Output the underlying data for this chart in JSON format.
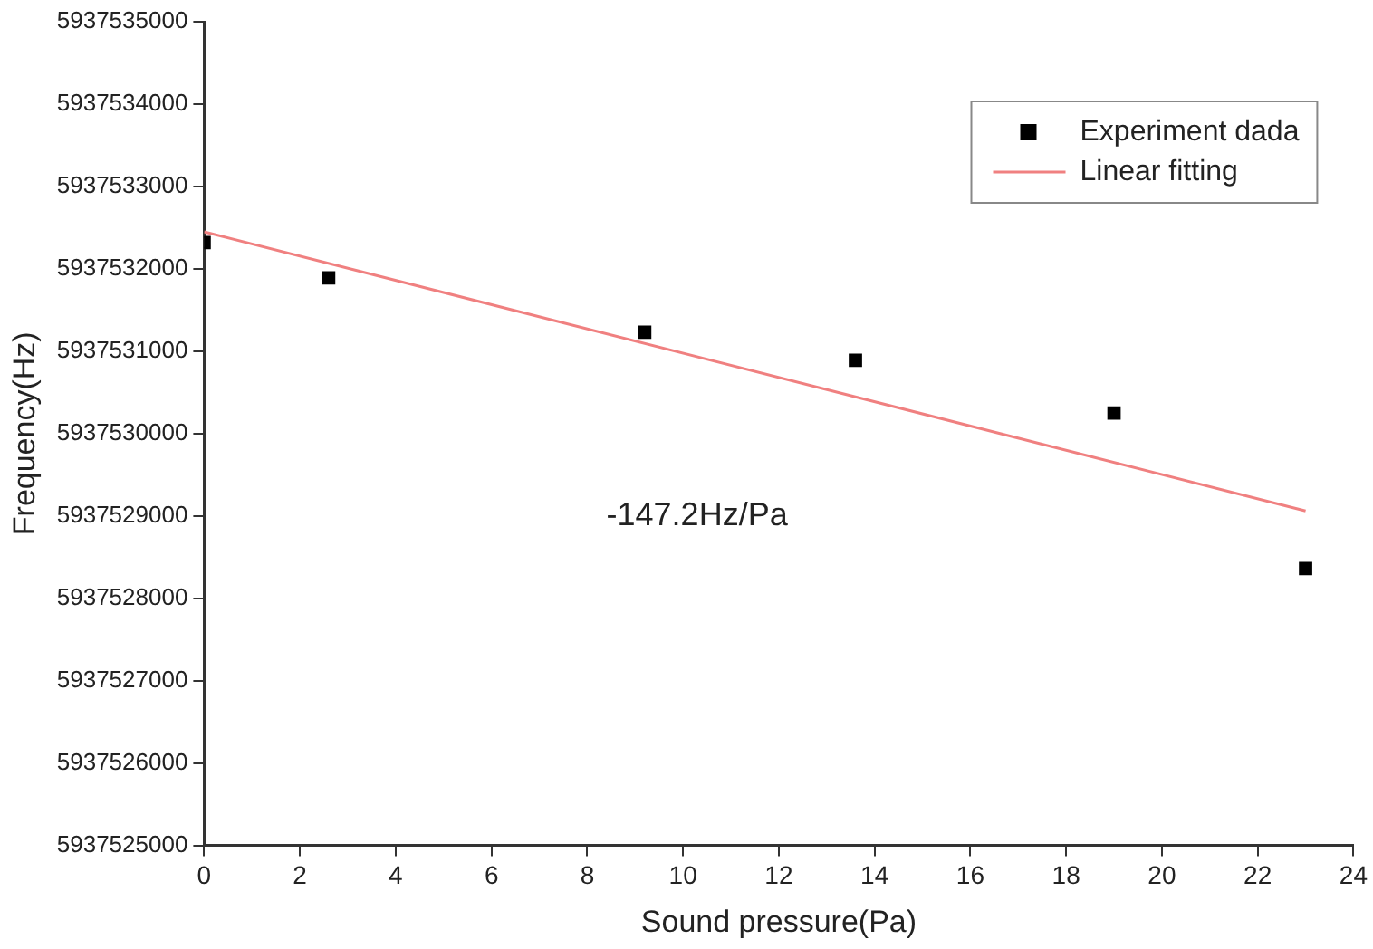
{
  "chart_data": {
    "type": "scatter",
    "xlabel": "Sound pressure(Pa)",
    "ylabel": "Frequency(Hz)",
    "series": [
      {
        "name": "Experiment dada",
        "color": "#000000",
        "marker": "square",
        "x": [
          0,
          2.6,
          9.2,
          13.6,
          19.0,
          23.0
        ],
        "values": [
          5937532320,
          5937531890,
          5937531230,
          5937530890,
          5937530250,
          5937528360
        ]
      },
      {
        "name": "Linear fitting",
        "type": "line",
        "color": "#f08080",
        "marker": "none",
        "x": [
          0,
          23.0
        ],
        "values": [
          5937532450,
          5937529060
        ]
      }
    ],
    "xlim": [
      0,
      24
    ],
    "xticks": [
      0,
      2,
      4,
      6,
      8,
      10,
      12,
      14,
      16,
      18,
      20,
      22,
      24
    ],
    "ylim": [
      5937525000,
      5937535000
    ],
    "yticks": [
      5937525000,
      5937526000,
      5937527000,
      5937528000,
      5937529000,
      5937530000,
      5937531000,
      5937532000,
      5937533000,
      5937534000,
      5937535000
    ],
    "annotations": [
      "-147.2Hz/Pa"
    ],
    "legend": "top right",
    "grid": false
  }
}
